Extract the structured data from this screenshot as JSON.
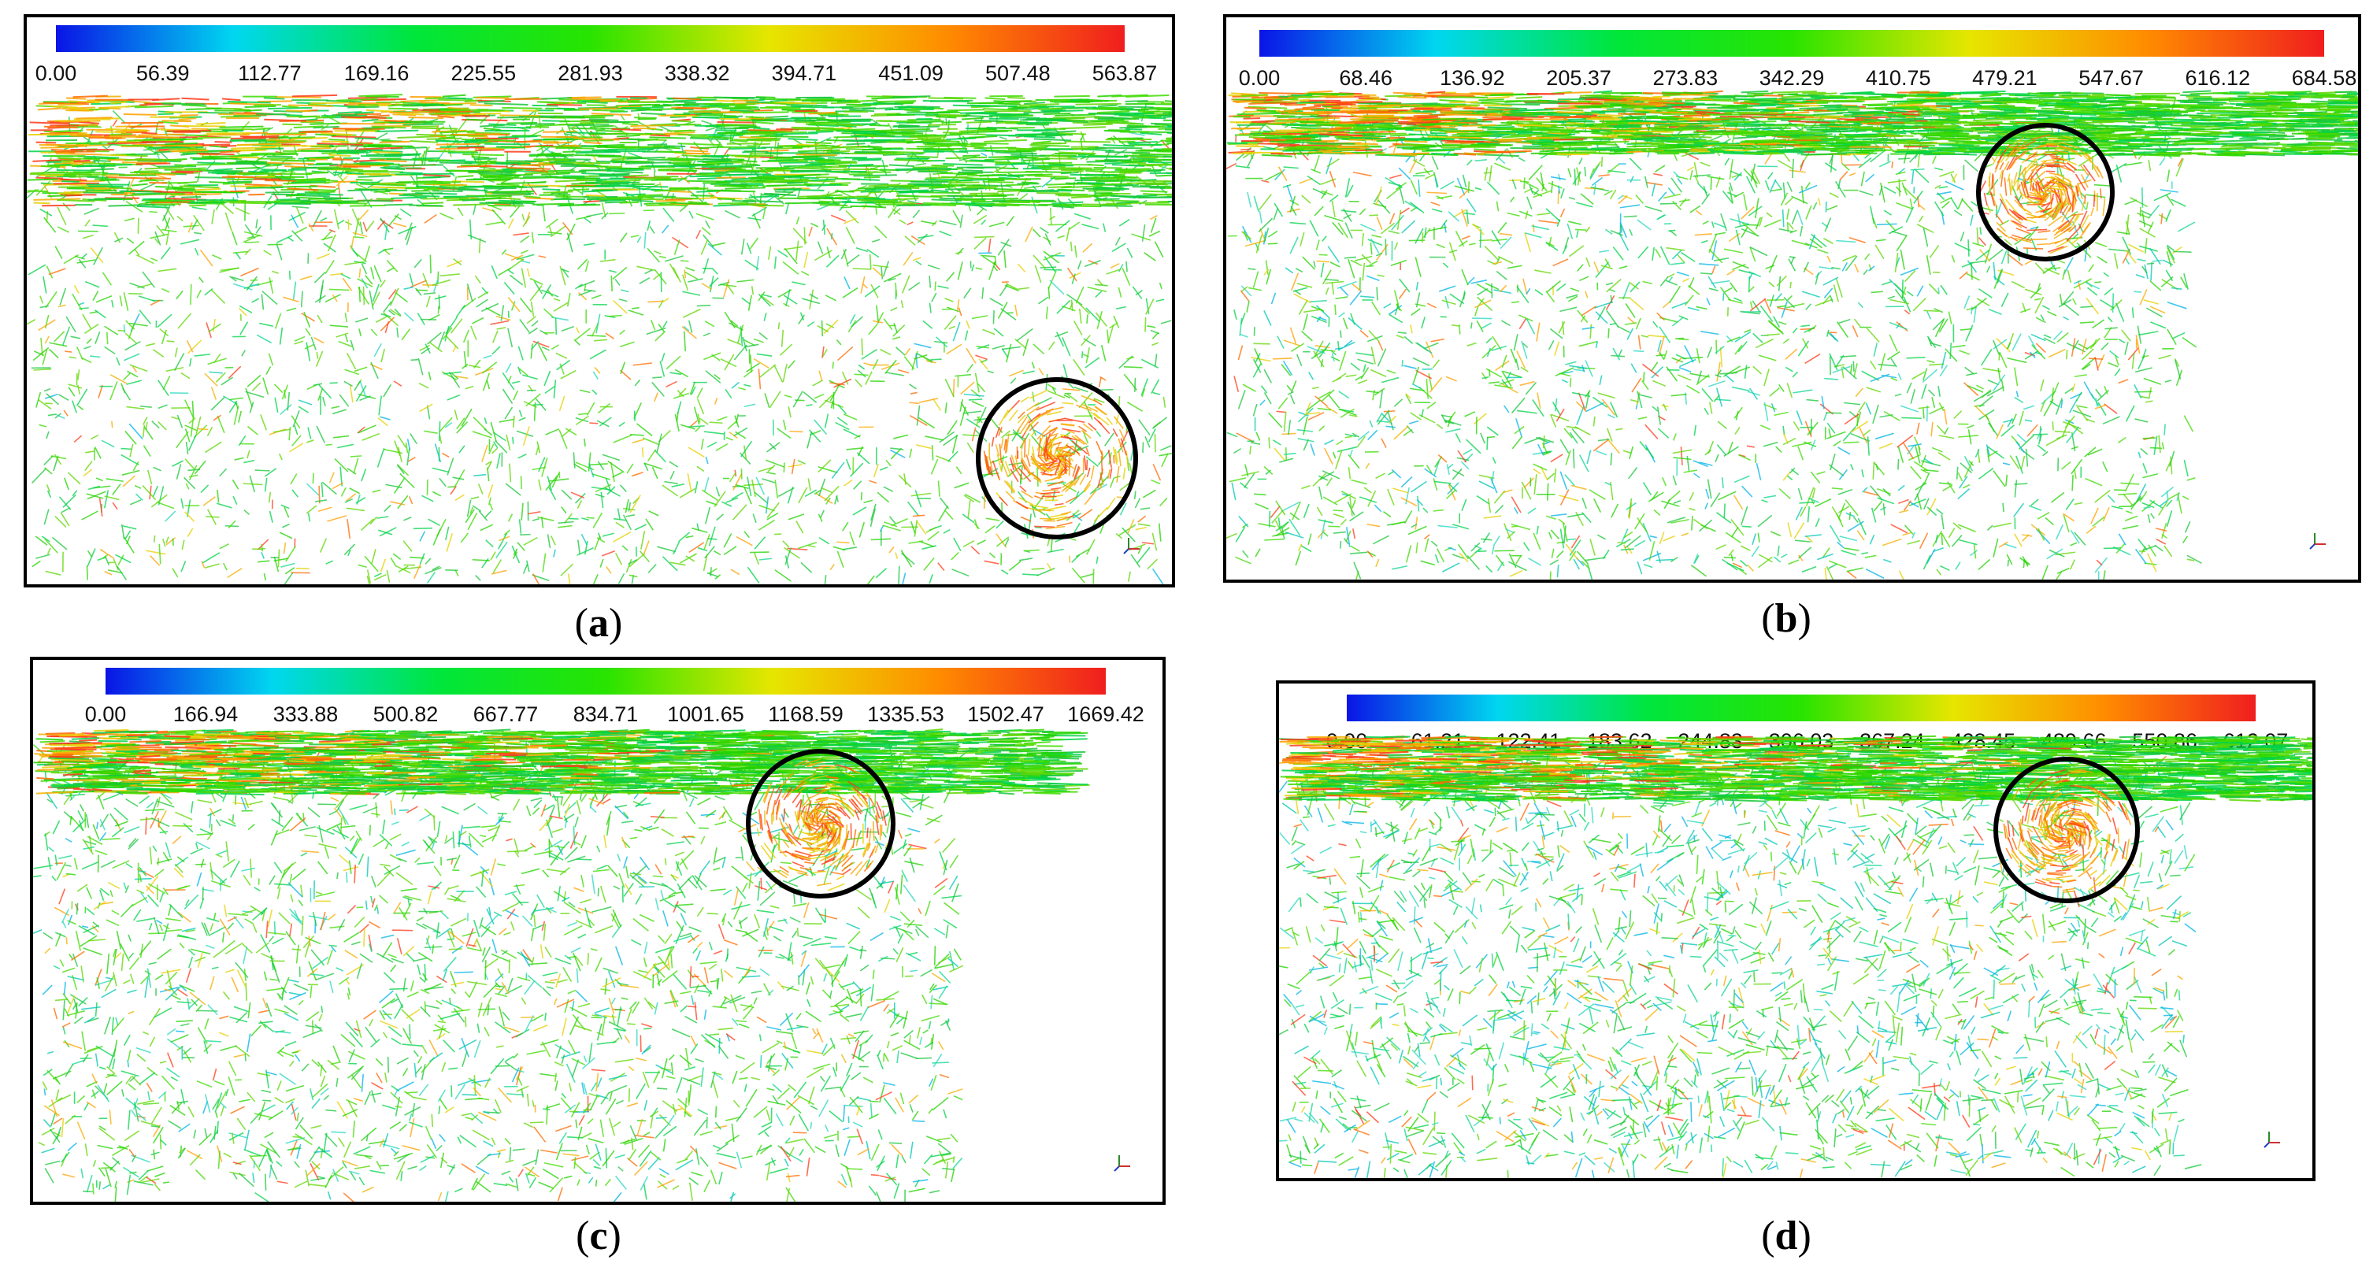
{
  "colorbar_colors": [
    "#0a14e6",
    "#00d7f0",
    "#00e63c",
    "#28e400",
    "#e6e600",
    "#ff8c00",
    "#f01e1e"
  ],
  "panels": [
    {
      "id": "a",
      "caption": "a",
      "colorbar_ticks": [
        "0.00",
        "56.39",
        "112.77",
        "169.16",
        "225.55",
        "281.93",
        "338.32",
        "394.71",
        "451.09",
        "507.48",
        "563.87"
      ],
      "highlight_circle": true
    },
    {
      "id": "b",
      "caption": "b",
      "colorbar_ticks": [
        "0.00",
        "68.46",
        "136.92",
        "205.37",
        "273.83",
        "342.29",
        "410.75",
        "479.21",
        "547.67",
        "616.12",
        "684.58"
      ],
      "highlight_circle": true
    },
    {
      "id": "c",
      "caption": "c",
      "colorbar_ticks": [
        "0.00",
        "166.94",
        "333.88",
        "500.82",
        "667.77",
        "834.71",
        "1001.65",
        "1168.59",
        "1335.53",
        "1502.47",
        "1669.42"
      ],
      "highlight_circle": true
    },
    {
      "id": "d",
      "caption": "d",
      "colorbar_ticks": [
        "0.00",
        "61.21",
        "122.41",
        "183.62",
        "244.83",
        "306.03",
        "367.24",
        "428.45",
        "489.66",
        "550.86",
        "612.07"
      ],
      "highlight_circle": true
    }
  ]
}
